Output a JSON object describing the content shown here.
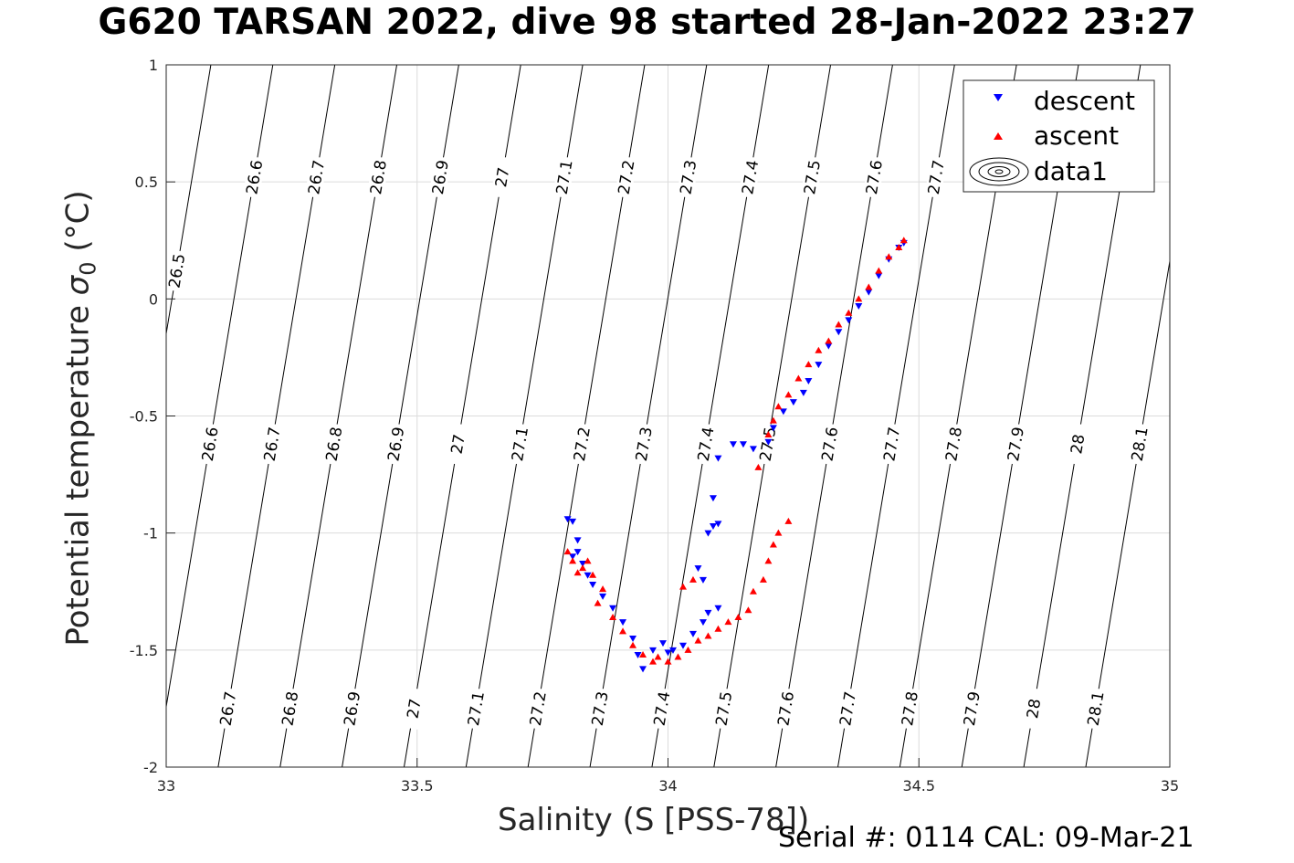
{
  "chart_data": {
    "type": "scatter",
    "title": "G620 TARSAN 2022, dive 98 started 28-Jan-2022 23:27",
    "xlabel": "Salinity (S [PSS-78])",
    "ylabel": "Potential temperature",
    "ylabel_symbol": "σ",
    "ylabel_sub": "0",
    "ylabel_unit": "(°C)",
    "xlim": [
      33,
      35
    ],
    "ylim": [
      -2,
      1
    ],
    "x_ticks": [
      33,
      33.5,
      34,
      34.5,
      35
    ],
    "x_tick_labels": [
      "33",
      "33.5",
      "34",
      "34.5",
      "35"
    ],
    "y_ticks": [
      -2,
      -1.5,
      -1,
      -0.5,
      0,
      0.5,
      1
    ],
    "y_tick_labels": [
      "-2",
      "-1.5",
      "-1",
      "-0.5",
      "0",
      "0.5",
      "1"
    ],
    "grid": true,
    "legend_position": "top-right",
    "legend": [
      "descent",
      "ascent",
      "data1"
    ],
    "series": [
      {
        "name": "descent",
        "marker": "triangle-down",
        "color": "#0000ff",
        "points": [
          [
            33.8,
            -0.94
          ],
          [
            33.81,
            -0.95
          ],
          [
            33.82,
            -1.03
          ],
          [
            33.82,
            -1.08
          ],
          [
            33.83,
            -1.13
          ],
          [
            33.81,
            -1.1
          ],
          [
            33.84,
            -1.18
          ],
          [
            33.85,
            -1.22
          ],
          [
            33.87,
            -1.27
          ],
          [
            33.89,
            -1.32
          ],
          [
            33.91,
            -1.38
          ],
          [
            33.93,
            -1.45
          ],
          [
            33.94,
            -1.52
          ],
          [
            33.95,
            -1.58
          ],
          [
            33.97,
            -1.5
          ],
          [
            33.99,
            -1.47
          ],
          [
            34.0,
            -1.51
          ],
          [
            34.01,
            -1.5
          ],
          [
            34.03,
            -1.48
          ],
          [
            34.05,
            -1.43
          ],
          [
            34.07,
            -1.38
          ],
          [
            34.08,
            -1.34
          ],
          [
            34.1,
            -1.32
          ],
          [
            34.07,
            -1.2
          ],
          [
            34.06,
            -1.15
          ],
          [
            34.08,
            -1.0
          ],
          [
            34.09,
            -0.97
          ],
          [
            34.1,
            -0.96
          ],
          [
            34.09,
            -0.85
          ],
          [
            34.1,
            -0.68
          ],
          [
            34.13,
            -0.62
          ],
          [
            34.15,
            -0.62
          ],
          [
            34.17,
            -0.64
          ],
          [
            34.2,
            -0.61
          ],
          [
            34.21,
            -0.55
          ],
          [
            34.23,
            -0.48
          ],
          [
            34.25,
            -0.44
          ],
          [
            34.27,
            -0.4
          ],
          [
            34.28,
            -0.35
          ],
          [
            34.3,
            -0.28
          ],
          [
            34.32,
            -0.2
          ],
          [
            34.34,
            -0.14
          ],
          [
            34.36,
            -0.09
          ],
          [
            34.38,
            -0.03
          ],
          [
            34.4,
            0.03
          ],
          [
            34.42,
            0.1
          ],
          [
            34.44,
            0.17
          ],
          [
            34.46,
            0.22
          ],
          [
            34.47,
            0.24
          ]
        ]
      },
      {
        "name": "ascent",
        "marker": "triangle-up",
        "color": "#ff0000",
        "points": [
          [
            33.8,
            -1.08
          ],
          [
            33.81,
            -1.12
          ],
          [
            33.82,
            -1.17
          ],
          [
            33.83,
            -1.15
          ],
          [
            33.84,
            -1.12
          ],
          [
            33.85,
            -1.18
          ],
          [
            33.87,
            -1.24
          ],
          [
            33.86,
            -1.3
          ],
          [
            33.89,
            -1.36
          ],
          [
            33.91,
            -1.42
          ],
          [
            33.93,
            -1.48
          ],
          [
            33.95,
            -1.52
          ],
          [
            33.97,
            -1.55
          ],
          [
            33.98,
            -1.53
          ],
          [
            34.0,
            -1.55
          ],
          [
            34.02,
            -1.53
          ],
          [
            34.04,
            -1.5
          ],
          [
            34.06,
            -1.46
          ],
          [
            34.08,
            -1.44
          ],
          [
            34.1,
            -1.41
          ],
          [
            34.12,
            -1.38
          ],
          [
            34.14,
            -1.36
          ],
          [
            34.16,
            -1.33
          ],
          [
            34.17,
            -1.25
          ],
          [
            34.19,
            -1.2
          ],
          [
            34.2,
            -1.12
          ],
          [
            34.21,
            -1.05
          ],
          [
            34.22,
            -1.0
          ],
          [
            34.24,
            -0.95
          ],
          [
            34.03,
            -1.23
          ],
          [
            34.05,
            -1.2
          ],
          [
            34.18,
            -0.72
          ],
          [
            34.2,
            -0.58
          ],
          [
            34.21,
            -0.52
          ],
          [
            34.22,
            -0.46
          ],
          [
            34.24,
            -0.41
          ],
          [
            34.26,
            -0.34
          ],
          [
            34.28,
            -0.28
          ],
          [
            34.3,
            -0.22
          ],
          [
            34.32,
            -0.18
          ],
          [
            34.34,
            -0.11
          ],
          [
            34.36,
            -0.06
          ],
          [
            34.38,
            0.0
          ],
          [
            34.4,
            0.05
          ],
          [
            34.42,
            0.12
          ],
          [
            34.44,
            0.18
          ],
          [
            34.46,
            0.22
          ],
          [
            34.47,
            0.25
          ]
        ]
      }
    ],
    "contours": {
      "note_values": [
        "26.5",
        "26.6",
        "26.7",
        "26.8",
        "26.9",
        "27",
        "27.1",
        "27.2",
        "27.3",
        "27.4",
        "27.5",
        "27.6",
        "27.7",
        "27.8",
        "27.9",
        "28",
        "28.1"
      ]
    }
  },
  "footer": "Serial #: 0114  CAL: 09-Mar-21"
}
